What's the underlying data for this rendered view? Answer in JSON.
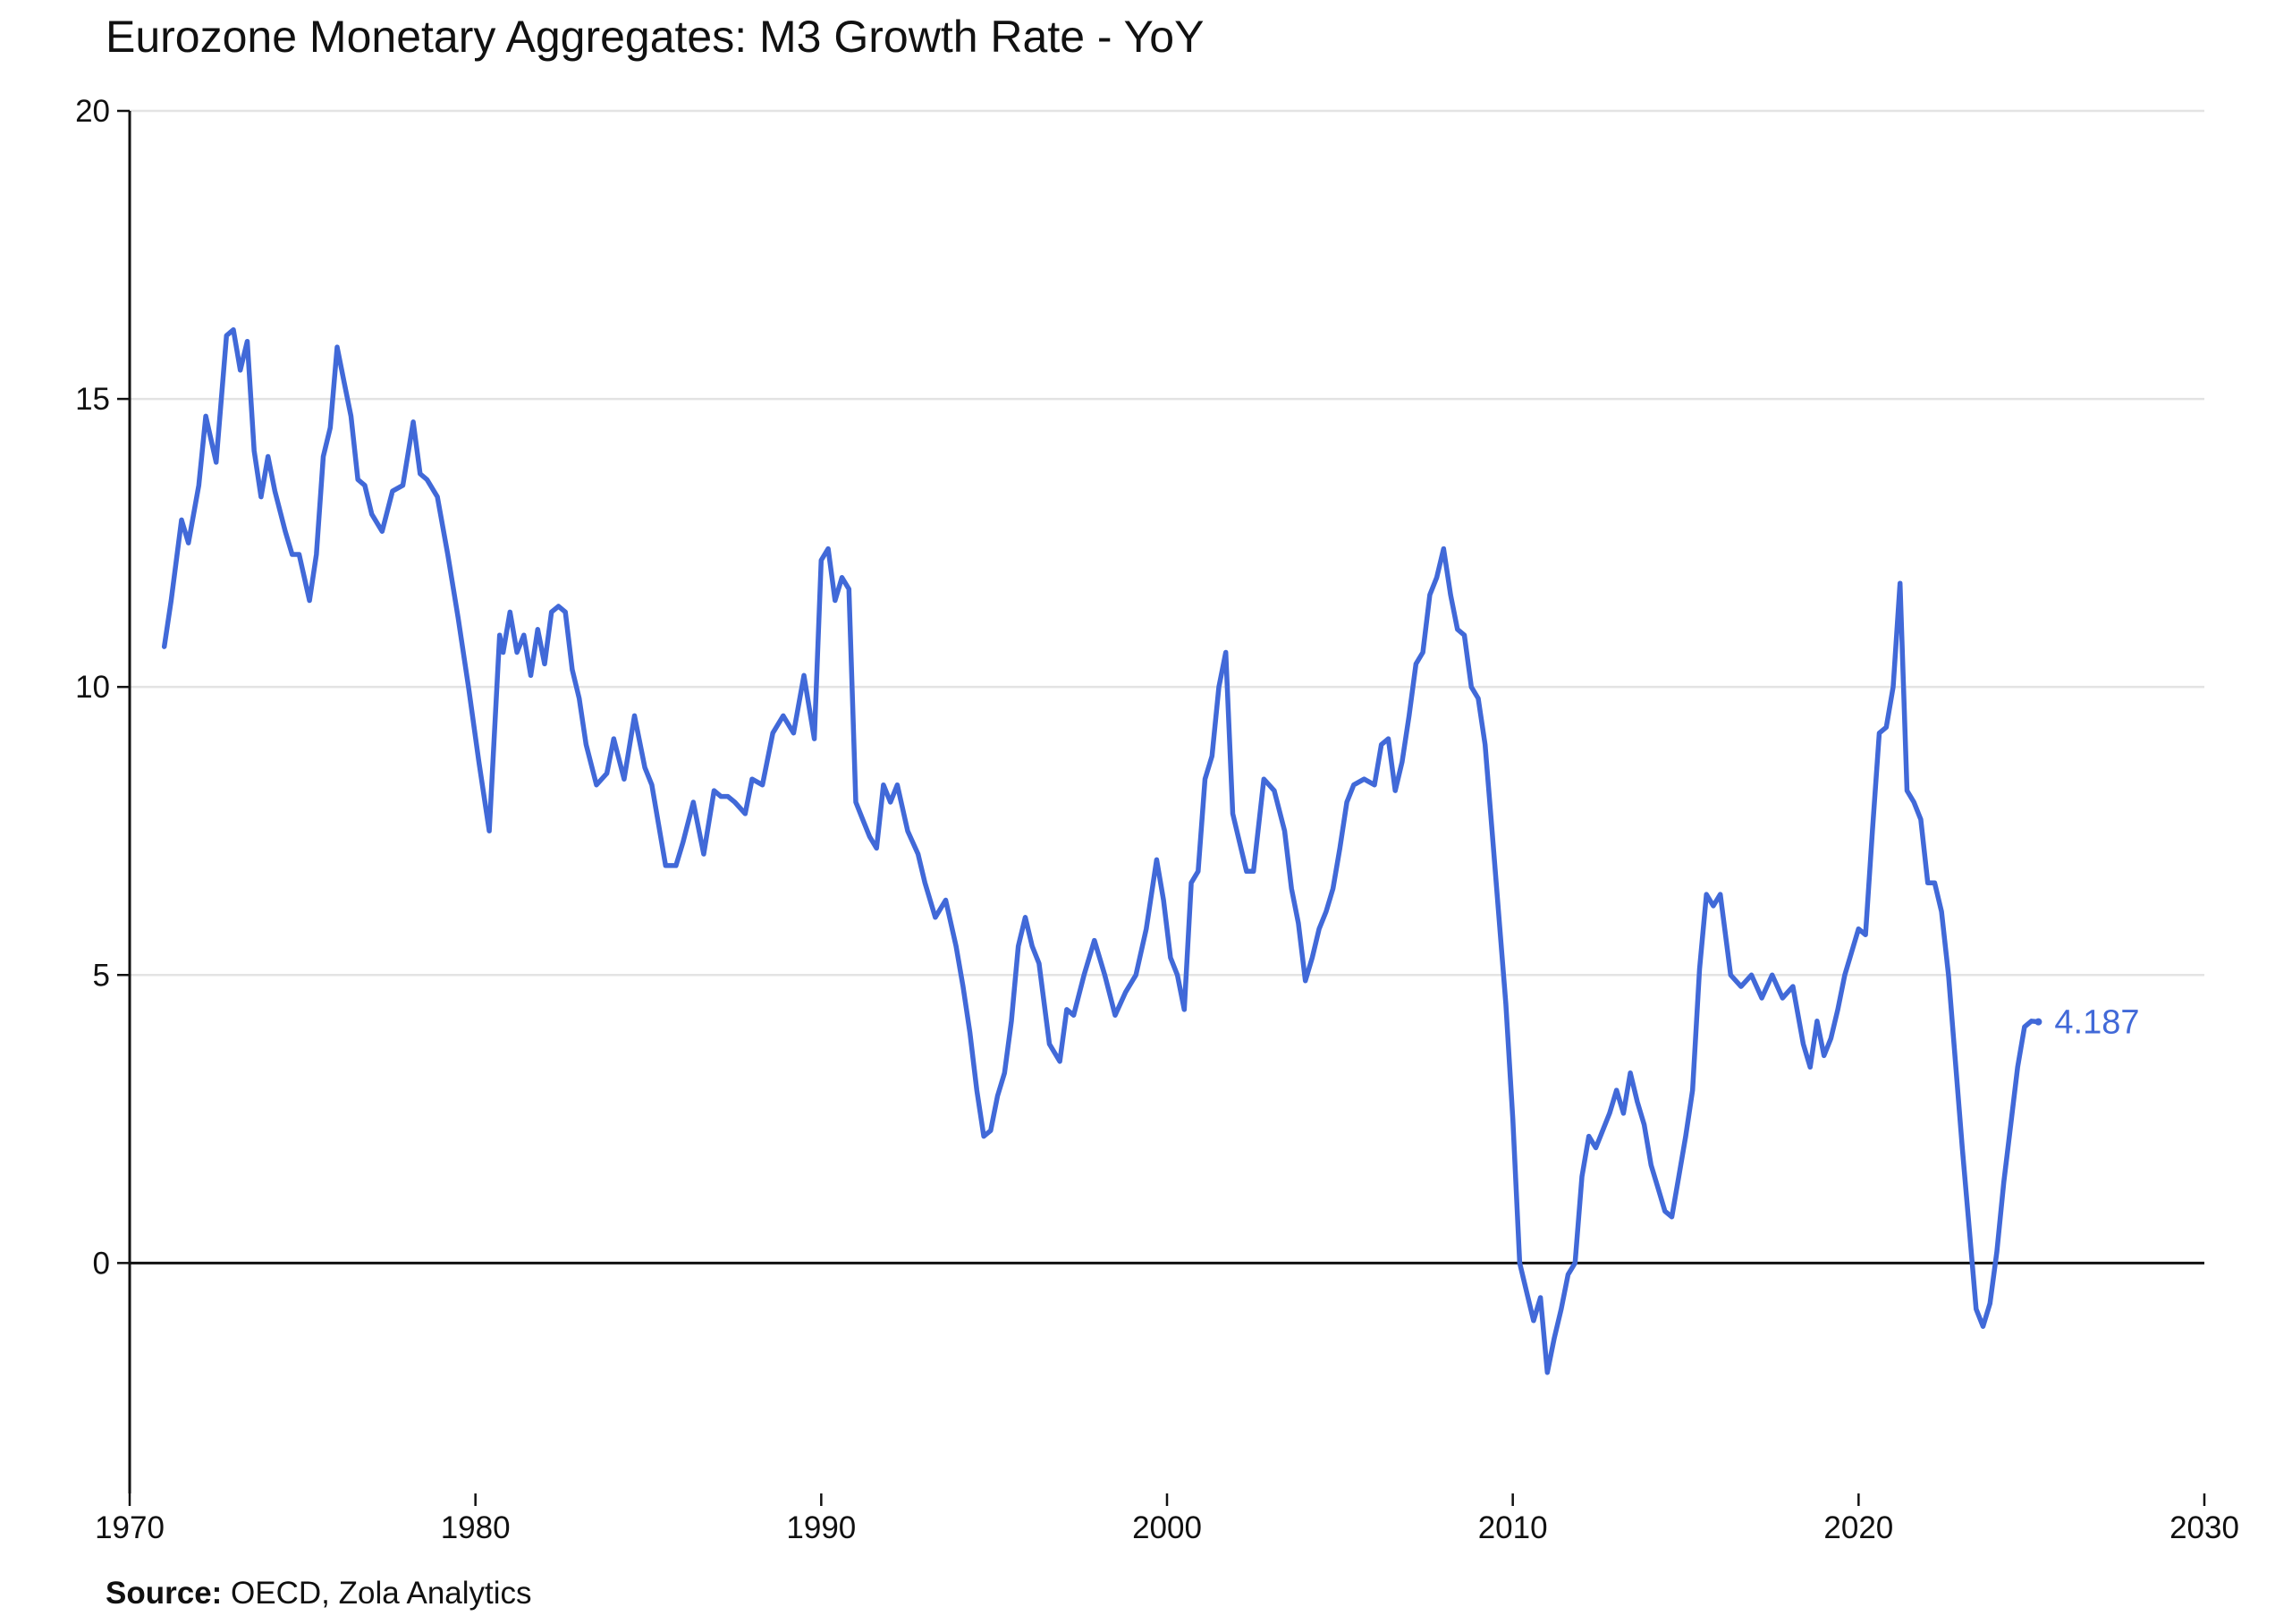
{
  "chart_data": {
    "type": "line",
    "title": "Eurozone Monetary Aggregates: M3 Growth Rate - YoY",
    "xlabel": "",
    "ylabel": "",
    "xlim": [
      1970,
      2030
    ],
    "ylim": [
      -4,
      20
    ],
    "x_ticks": [
      1970,
      1980,
      1990,
      2000,
      2010,
      2020,
      2030
    ],
    "y_ticks": [
      0,
      5,
      10,
      15,
      20
    ],
    "grid": "horizontal",
    "zero_line": true,
    "series": [
      {
        "name": "M3 Growth Rate - YoY",
        "color": "#4169d8",
        "end_label": "4.187",
        "x": [
          1971.0,
          1971.2,
          1971.5,
          1971.7,
          1972.0,
          1972.2,
          1972.5,
          1972.8,
          1973.0,
          1973.2,
          1973.4,
          1973.6,
          1973.8,
          1974.0,
          1974.2,
          1974.5,
          1974.7,
          1974.9,
          1975.2,
          1975.4,
          1975.6,
          1975.8,
          1976.0,
          1976.2,
          1976.4,
          1976.6,
          1976.8,
          1977.0,
          1977.3,
          1977.6,
          1977.9,
          1978.2,
          1978.4,
          1978.6,
          1978.9,
          1979.2,
          1979.5,
          1979.8,
          1980.1,
          1980.4,
          1980.7,
          1980.8,
          1981.0,
          1981.2,
          1981.4,
          1981.6,
          1981.8,
          1982.0,
          1982.2,
          1982.4,
          1982.6,
          1982.8,
          1983.0,
          1983.2,
          1983.5,
          1983.8,
          1984.0,
          1984.3,
          1984.6,
          1984.9,
          1985.1,
          1985.3,
          1985.5,
          1985.8,
          1986.0,
          1986.3,
          1986.6,
          1986.9,
          1987.1,
          1987.3,
          1987.5,
          1987.8,
          1988.0,
          1988.3,
          1988.6,
          1988.9,
          1989.2,
          1989.5,
          1989.8,
          1990.0,
          1990.2,
          1990.4,
          1990.6,
          1990.8,
          1991.0,
          1991.2,
          1991.4,
          1991.6,
          1991.8,
          1992.0,
          1992.2,
          1992.5,
          1992.8,
          1993.0,
          1993.3,
          1993.6,
          1993.9,
          1994.1,
          1994.3,
          1994.5,
          1994.7,
          1994.9,
          1995.1,
          1995.3,
          1995.5,
          1995.7,
          1995.9,
          1996.1,
          1996.3,
          1996.6,
          1996.9,
          1997.1,
          1997.3,
          1997.6,
          1997.9,
          1998.2,
          1998.5,
          1998.8,
          1999.1,
          1999.4,
          1999.7,
          1999.9,
          2000.1,
          2000.3,
          2000.5,
          2000.7,
          2000.9,
          2001.1,
          2001.3,
          2001.5,
          2001.7,
          2001.9,
          2002.1,
          2002.3,
          2002.5,
          2002.8,
          2003.1,
          2003.4,
          2003.6,
          2003.8,
          2004.0,
          2004.2,
          2004.4,
          2004.6,
          2004.8,
          2005.0,
          2005.2,
          2005.4,
          2005.7,
          2006.0,
          2006.2,
          2006.4,
          2006.6,
          2006.8,
          2007.0,
          2007.2,
          2007.4,
          2007.6,
          2007.8,
          2008.0,
          2008.2,
          2008.4,
          2008.6,
          2008.8,
          2009.0,
          2009.2,
          2009.4,
          2009.6,
          2009.8,
          2010.0,
          2010.2,
          2010.4,
          2010.6,
          2010.8,
          2011.0,
          2011.2,
          2011.4,
          2011.6,
          2011.8,
          2012.0,
          2012.2,
          2012.4,
          2012.6,
          2012.8,
          2013.0,
          2013.2,
          2013.4,
          2013.6,
          2013.8,
          2014.0,
          2014.2,
          2014.4,
          2014.6,
          2014.8,
          2015.0,
          2015.2,
          2015.4,
          2015.6,
          2015.8,
          2016.0,
          2016.3,
          2016.6,
          2016.9,
          2017.2,
          2017.5,
          2017.8,
          2018.1,
          2018.4,
          2018.6,
          2018.8,
          2019.0,
          2019.2,
          2019.4,
          2019.6,
          2019.8,
          2020.0,
          2020.2,
          2020.4,
          2020.6,
          2020.8,
          2021.0,
          2021.2,
          2021.4,
          2021.6,
          2021.8,
          2022.0,
          2022.2,
          2022.4,
          2022.6,
          2022.8,
          2023.0,
          2023.2,
          2023.4,
          2023.6,
          2023.8,
          2024.0,
          2024.2,
          2024.4,
          2024.6,
          2024.8,
          2025.0,
          2025.2
        ],
        "values": [
          10.7,
          11.5,
          12.9,
          12.5,
          13.5,
          14.7,
          13.9,
          16.1,
          16.2,
          15.5,
          16.0,
          14.1,
          13.3,
          14.0,
          13.4,
          12.7,
          12.3,
          12.3,
          11.5,
          12.3,
          14.0,
          14.5,
          15.9,
          15.3,
          14.7,
          13.6,
          13.5,
          13.0,
          12.7,
          13.4,
          13.5,
          14.6,
          13.7,
          13.6,
          13.3,
          12.3,
          11.2,
          10.0,
          8.7,
          7.5,
          10.9,
          10.6,
          11.3,
          10.6,
          10.9,
          10.2,
          11.0,
          10.4,
          11.3,
          11.4,
          11.3,
          10.3,
          9.8,
          9.0,
          8.3,
          8.5,
          9.1,
          8.4,
          9.5,
          8.6,
          8.3,
          7.6,
          6.9,
          6.9,
          7.3,
          8.0,
          7.1,
          8.2,
          8.1,
          8.1,
          8.0,
          7.8,
          8.4,
          8.3,
          9.2,
          9.5,
          9.2,
          10.2,
          9.1,
          12.2,
          12.4,
          11.5,
          11.9,
          11.7,
          8.0,
          7.7,
          7.4,
          7.2,
          8.3,
          8.0,
          8.3,
          7.5,
          7.1,
          6.6,
          6.0,
          6.3,
          5.5,
          4.8,
          4.0,
          3.0,
          2.2,
          2.3,
          2.9,
          3.3,
          4.2,
          5.5,
          6.0,
          5.5,
          5.2,
          3.8,
          3.5,
          4.4,
          4.3,
          5.0,
          5.6,
          5.0,
          4.3,
          4.7,
          5.0,
          5.8,
          7.0,
          6.3,
          5.3,
          5.0,
          4.4,
          6.6,
          6.8,
          8.4,
          8.8,
          10.0,
          10.6,
          7.8,
          7.3,
          6.8,
          6.8,
          8.4,
          8.2,
          7.5,
          6.5,
          5.9,
          4.9,
          5.3,
          5.8,
          6.1,
          6.5,
          7.2,
          8.0,
          8.3,
          8.4,
          8.3,
          9.0,
          9.1,
          8.2,
          8.7,
          9.5,
          10.4,
          10.6,
          11.6,
          11.9,
          12.4,
          11.6,
          11.0,
          10.9,
          10.0,
          9.8,
          9.0,
          7.5,
          6.0,
          4.5,
          2.5,
          0.0,
          -0.5,
          -1.0,
          -0.6,
          -1.9,
          -1.3,
          -0.8,
          -0.2,
          0.0,
          1.5,
          2.2,
          2.0,
          2.3,
          2.6,
          3.0,
          2.6,
          3.3,
          2.8,
          2.4,
          1.7,
          1.3,
          0.9,
          0.8,
          1.5,
          2.2,
          3.0,
          5.1,
          6.4,
          6.2,
          6.4,
          5.0,
          4.8,
          5.0,
          4.6,
          5.0,
          4.6,
          4.8,
          3.8,
          3.4,
          4.2,
          3.6,
          3.9,
          4.4,
          5.0,
          5.4,
          5.8,
          5.7,
          7.5,
          9.2,
          9.3,
          10.0,
          11.8,
          8.2,
          8.0,
          7.7,
          6.6,
          6.6,
          6.1,
          5.0,
          3.5,
          2.0,
          0.6,
          -0.8,
          -1.1,
          -0.7,
          0.2,
          1.4,
          2.4,
          3.4,
          4.1,
          4.2,
          4.187
        ]
      }
    ]
  },
  "source": {
    "label": "Source:",
    "text": " OECD, Zola Analytics"
  }
}
